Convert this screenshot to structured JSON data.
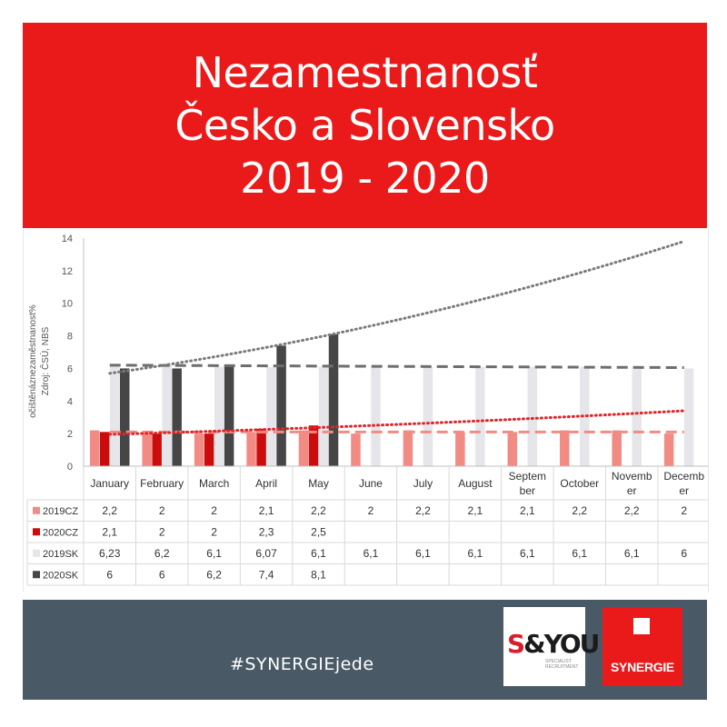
{
  "header": {
    "title_line1": "Nezamestnanosť",
    "title_line2": "Česko a Slovensko",
    "title_line3": "2019 - 2020"
  },
  "chart_data": {
    "type": "bar",
    "ylabel_line1": "očištěnáznezaměstnanost%",
    "ylabel_line2": "Zdroj: ČSÚ, NBS",
    "ylim": [
      0,
      14
    ],
    "yticks": [
      0,
      2,
      4,
      6,
      8,
      10,
      12,
      14
    ],
    "categories": [
      "January",
      "February",
      "March",
      "April",
      "May",
      "June",
      "July",
      "August",
      "Septem|ber",
      "October",
      "Novemb|er",
      "Decemb|er"
    ],
    "series": [
      {
        "name": "2019CZ",
        "color": "#f28b84",
        "values": [
          2.2,
          2,
          2,
          2.1,
          2.2,
          2,
          2.2,
          2.1,
          2.1,
          2.2,
          2.2,
          2
        ],
        "labels": [
          "2,2",
          "2",
          "2",
          "2,1",
          "2,2",
          "2",
          "2,2",
          "2,1",
          "2,1",
          "2,2",
          "2,2",
          "2"
        ]
      },
      {
        "name": "2020CZ",
        "color": "#cc0c0c",
        "values": [
          2.1,
          2,
          2,
          2.3,
          2.5,
          null,
          null,
          null,
          null,
          null,
          null,
          null
        ],
        "labels": [
          "2,1",
          "2",
          "2",
          "2,3",
          "2,5",
          "",
          "",
          "",
          "",
          "",
          "",
          ""
        ]
      },
      {
        "name": "2019SK",
        "color": "#e6e6ea",
        "values": [
          6.23,
          6.2,
          6.1,
          6.07,
          6.1,
          6.1,
          6.1,
          6.1,
          6.1,
          6.1,
          6.1,
          6
        ],
        "labels": [
          "6,23",
          "6,2",
          "6,1",
          "6,07",
          "6,1",
          "6,1",
          "6,1",
          "6,1",
          "6,1",
          "6,1",
          "6,1",
          "6"
        ]
      },
      {
        "name": "2020SK",
        "color": "#464646",
        "values": [
          6,
          6,
          6.2,
          7.4,
          8.1,
          null,
          null,
          null,
          null,
          null,
          null,
          null
        ],
        "labels": [
          "6",
          "6",
          "6,2",
          "7,4",
          "8,1",
          "",
          "",
          "",
          "",
          "",
          "",
          ""
        ]
      }
    ],
    "trendlines": [
      {
        "style": "dashed",
        "color": "#f28b84",
        "from": [
          1,
          2.1
        ],
        "to": [
          12,
          2.1
        ]
      },
      {
        "style": "dashed",
        "color": "#6e6e6e",
        "from": [
          1,
          6.2
        ],
        "to": [
          12,
          6.05
        ]
      },
      {
        "style": "dotted",
        "color": "#e0262a",
        "from": [
          1,
          1.95
        ],
        "to": [
          12,
          3.4
        ]
      },
      {
        "style": "dotted",
        "color": "#7a7a7a",
        "from": [
          1,
          5.7
        ],
        "to": [
          12,
          13.8
        ]
      }
    ],
    "grid": false,
    "legend": "table-below"
  },
  "footer": {
    "hashtag": "#SYNERGIEjede",
    "background": "#495a66"
  },
  "logos": {
    "syou_s": "S",
    "syou_rest": "&YOU",
    "syou_sub": "SPECIALIST RECRUITMENT",
    "synergie": "SYNERGIE"
  },
  "colors": {
    "brand_red": "#ea1a1a"
  }
}
